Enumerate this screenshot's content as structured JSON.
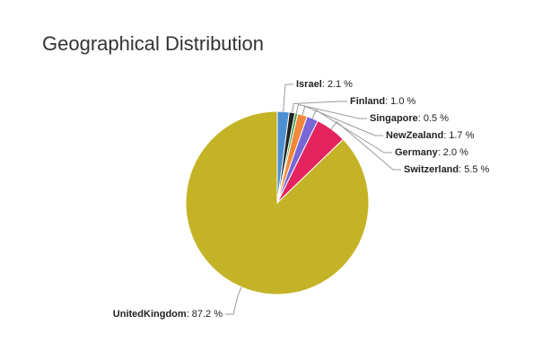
{
  "chart_data": {
    "type": "pie",
    "title": "Geographical Distribution",
    "categories": [
      "Israel",
      "Finland",
      "Singapore",
      "NewZealand",
      "Germany",
      "Switzerland",
      "UnitedKingdom"
    ],
    "values": [
      2.1,
      1.0,
      0.5,
      1.7,
      2.0,
      5.5,
      87.2
    ],
    "value_labels": [
      "2.1 %",
      "1.0 %",
      "0.5 %",
      "1.7 %",
      "2.0 %",
      "5.5 %",
      "87.2 %"
    ],
    "label_separator": ":",
    "colors": [
      "#4d8fd3",
      "#222222",
      "#3da34a",
      "#f2883a",
      "#7768d6",
      "#e3245e",
      "#c4b326"
    ]
  }
}
